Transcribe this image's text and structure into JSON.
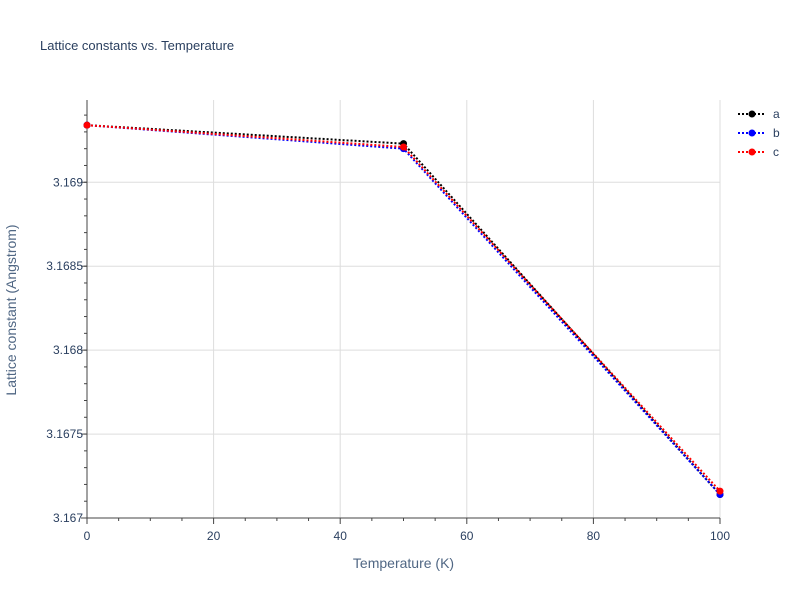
{
  "chart_data": {
    "type": "line",
    "title": "Lattice constants vs. Temperature",
    "xlabel": "Temperature (K)",
    "ylabel": "Lattice constant (Angstrom)",
    "xlim": [
      0,
      100
    ],
    "ylim": [
      3.167,
      3.16949
    ],
    "x_ticks": [
      0,
      20,
      40,
      60,
      80,
      100
    ],
    "x_tick_labels": [
      "0",
      "20",
      "40",
      "60",
      "80",
      "100"
    ],
    "y_ticks": [
      3.167,
      3.1675,
      3.168,
      3.1685,
      3.169
    ],
    "y_tick_labels": [
      "3.167",
      "3.1675",
      "3.168",
      "3.1685",
      "3.169"
    ],
    "grid": true,
    "legend_position": "top-right",
    "series": [
      {
        "name": "a",
        "color": "#000000",
        "x": [
          0,
          50,
          100
        ],
        "y": [
          3.16934,
          3.16923,
          3.16714
        ]
      },
      {
        "name": "b",
        "color": "#0000ff",
        "x": [
          0,
          50,
          100
        ],
        "y": [
          3.16934,
          3.1692,
          3.16714
        ]
      },
      {
        "name": "c",
        "color": "#ff0000",
        "x": [
          0,
          50,
          100
        ],
        "y": [
          3.16934,
          3.16921,
          3.16716
        ]
      }
    ]
  }
}
